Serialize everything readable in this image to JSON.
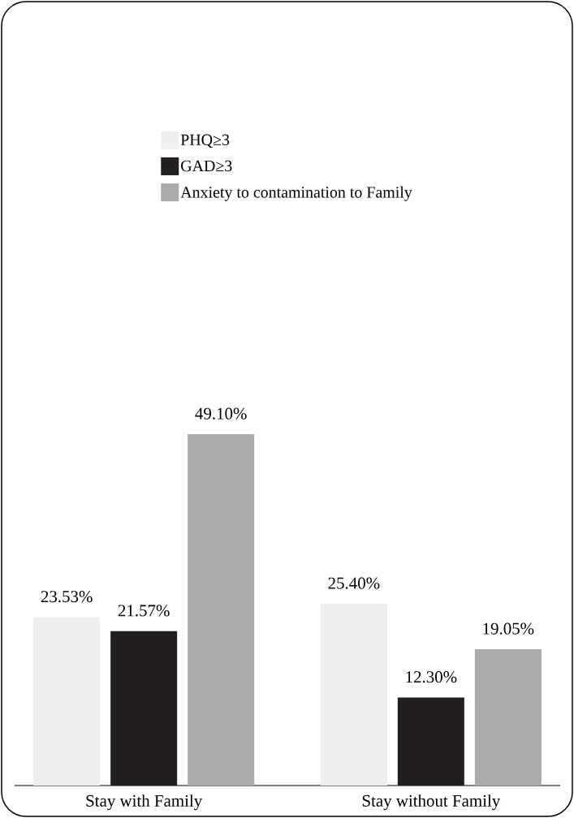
{
  "chart_data": {
    "type": "bar",
    "categories": [
      "Stay with Family",
      "Stay without Family"
    ],
    "series": [
      {
        "name": "PHQ≥3",
        "color": "#efefef",
        "values": [
          23.53,
          25.4
        ],
        "value_labels": [
          "23.53%",
          "25.40%"
        ]
      },
      {
        "name": "GAD≥3",
        "color": "#231f20",
        "values": [
          21.57,
          12.3
        ],
        "value_labels": [
          "21.57%",
          "12.30%"
        ]
      },
      {
        "name": "Anxiety to contamination to Family",
        "color": "#aaaaaa",
        "values": [
          49.1,
          19.05
        ],
        "value_labels": [
          "49.10%",
          "19.05%"
        ]
      }
    ],
    "legend": "top"
  }
}
